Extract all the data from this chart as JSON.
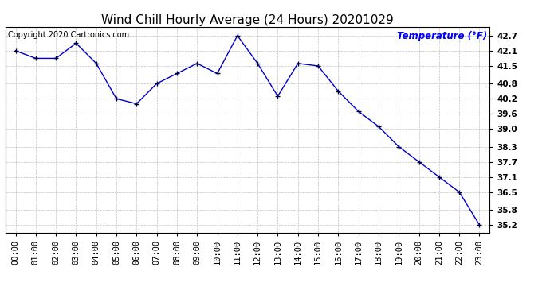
{
  "title": "Wind Chill Hourly Average (24 Hours) 20201029",
  "copyright_text": "Copyright 2020 Cartronics.com",
  "legend_text": "Temperature (°F)",
  "hours": [
    "00:00",
    "01:00",
    "02:00",
    "03:00",
    "04:00",
    "05:00",
    "06:00",
    "07:00",
    "08:00",
    "09:00",
    "10:00",
    "11:00",
    "12:00",
    "13:00",
    "14:00",
    "15:00",
    "16:00",
    "17:00",
    "18:00",
    "19:00",
    "20:00",
    "21:00",
    "22:00",
    "23:00"
  ],
  "values": [
    42.1,
    41.8,
    41.8,
    42.4,
    41.6,
    40.2,
    40.0,
    40.8,
    41.2,
    41.6,
    41.2,
    42.7,
    41.6,
    40.3,
    41.6,
    41.5,
    40.5,
    39.7,
    39.1,
    38.3,
    37.7,
    37.1,
    36.5,
    35.2
  ],
  "ylim_min": 34.9,
  "ylim_max": 43.05,
  "yticks": [
    35.2,
    35.8,
    36.5,
    37.1,
    37.7,
    38.3,
    39.0,
    39.6,
    40.2,
    40.8,
    41.5,
    42.1,
    42.7
  ],
  "line_color": "#0000CC",
  "marker_color": "#000033",
  "bg_color": "#ffffff",
  "plot_bg_color": "#ffffff",
  "grid_color": "#b0b0b0",
  "title_color": "#000000",
  "copyright_color": "#000000",
  "legend_color": "#0000FF",
  "title_fontsize": 11,
  "copyright_fontsize": 7,
  "legend_fontsize": 8.5,
  "tick_fontsize": 7.5
}
